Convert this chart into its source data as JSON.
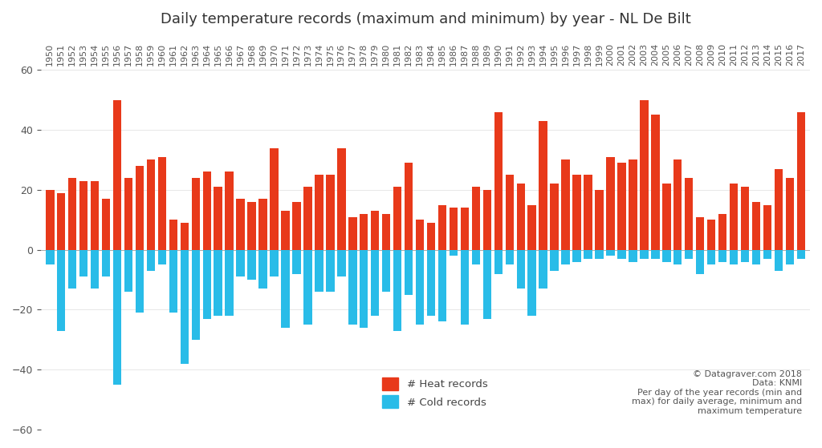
{
  "title": "Daily temperature records (maximum and minimum) by year - NL De Bilt",
  "years": [
    1950,
    1951,
    1952,
    1953,
    1954,
    1955,
    1956,
    1957,
    1958,
    1959,
    1960,
    1961,
    1962,
    1963,
    1964,
    1965,
    1966,
    1967,
    1968,
    1969,
    1970,
    1971,
    1972,
    1973,
    1974,
    1975,
    1976,
    1977,
    1978,
    1979,
    1980,
    1981,
    1982,
    1983,
    1984,
    1985,
    1986,
    1987,
    1988,
    1989,
    1990,
    1991,
    1992,
    1993,
    1994,
    1995,
    1996,
    1997,
    1998,
    1999,
    2000,
    2001,
    2002,
    2003,
    2004,
    2005,
    2006,
    2007,
    2008,
    2009,
    2010,
    2011,
    2012,
    2013,
    2014,
    2015,
    2016,
    2017
  ],
  "heat_records": [
    20,
    19,
    24,
    23,
    23,
    17,
    50,
    24,
    28,
    30,
    31,
    10,
    9,
    24,
    26,
    21,
    26,
    17,
    16,
    17,
    34,
    13,
    16,
    21,
    25,
    25,
    34,
    11,
    12,
    13,
    12,
    21,
    29,
    10,
    9,
    15,
    14,
    14,
    21,
    20,
    46,
    25,
    22,
    15,
    43,
    22,
    30,
    25,
    25,
    20,
    31,
    29,
    30,
    50,
    45,
    22,
    30,
    24,
    11,
    10,
    12,
    22,
    21,
    16,
    15,
    27,
    24,
    46
  ],
  "cold_records": [
    -5,
    -27,
    -13,
    -9,
    -13,
    -9,
    -45,
    -14,
    -21,
    -7,
    -5,
    -21,
    -38,
    -30,
    -23,
    -22,
    -22,
    -9,
    -10,
    -13,
    -9,
    -26,
    -8,
    -25,
    -14,
    -14,
    -9,
    -25,
    -26,
    -22,
    -14,
    -27,
    -15,
    -25,
    -22,
    -24,
    -2,
    -25,
    -5,
    -23,
    -8,
    -5,
    -13,
    -22,
    -13,
    -7,
    -5,
    -4,
    -3,
    -3,
    -2,
    -3,
    -4,
    -3,
    -3,
    -4,
    -5,
    -3,
    -8,
    -5,
    -4,
    -5,
    -4,
    -5,
    -3,
    -7,
    -5,
    -3
  ],
  "heat_color": "#e8391a",
  "cold_color": "#29bce8",
  "background_color": "#ffffff",
  "ylim": [
    -60,
    60
  ],
  "yticks": [
    -60,
    -40,
    -20,
    0,
    20,
    40,
    60
  ],
  "annotation": "© Datagraver.com 2018\nData: KNMI\nPer day of the year records (min and\nmax) for daily average, minimum and\nmaximum temperature",
  "legend_heat": "# Heat records",
  "legend_cold": "# Cold records"
}
